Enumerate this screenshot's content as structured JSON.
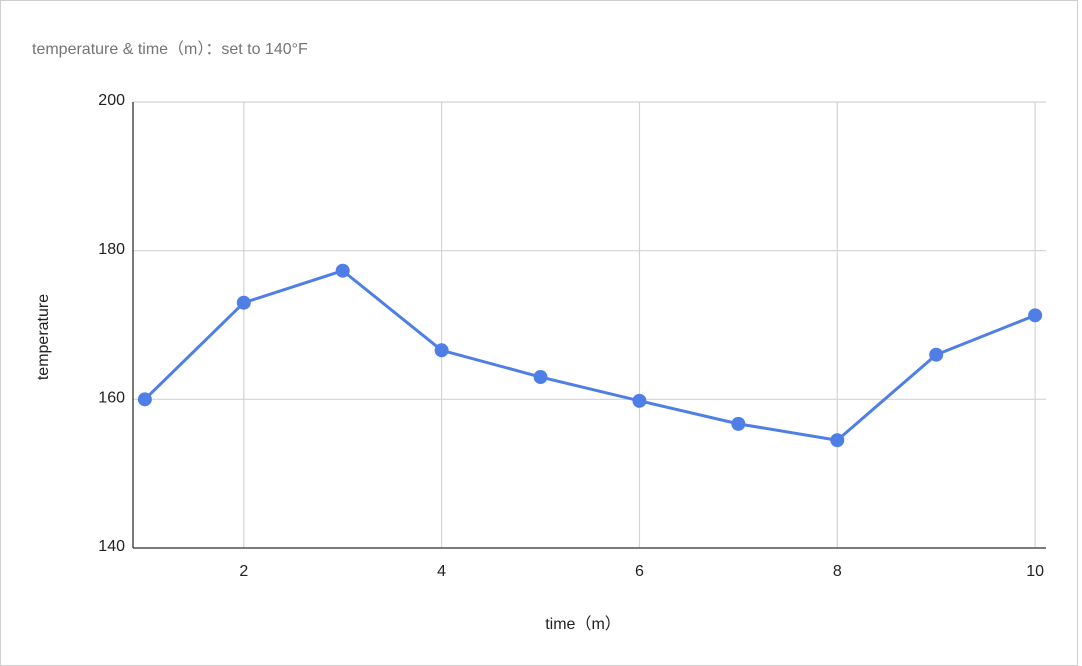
{
  "chart_data": {
    "type": "line",
    "title": "temperature & time（m）：set to 140°F",
    "x_label": "time（m）",
    "y_label": "temperature",
    "x": [
      1,
      2,
      3,
      4,
      5,
      6,
      7,
      8,
      9,
      10
    ],
    "series": [
      {
        "name": "temperature",
        "color": "#4f7fe6",
        "values": [
          160.0,
          173.0,
          177.3,
          166.6,
          163.0,
          159.8,
          156.7,
          154.5,
          166.0,
          171.3
        ]
      }
    ],
    "xlim": [
      0.88,
      10.11
    ],
    "ylim": [
      140,
      200
    ],
    "xticks": [
      2,
      4,
      6,
      8,
      10
    ],
    "yticks": [
      140,
      160,
      180,
      200
    ],
    "grid": true
  }
}
